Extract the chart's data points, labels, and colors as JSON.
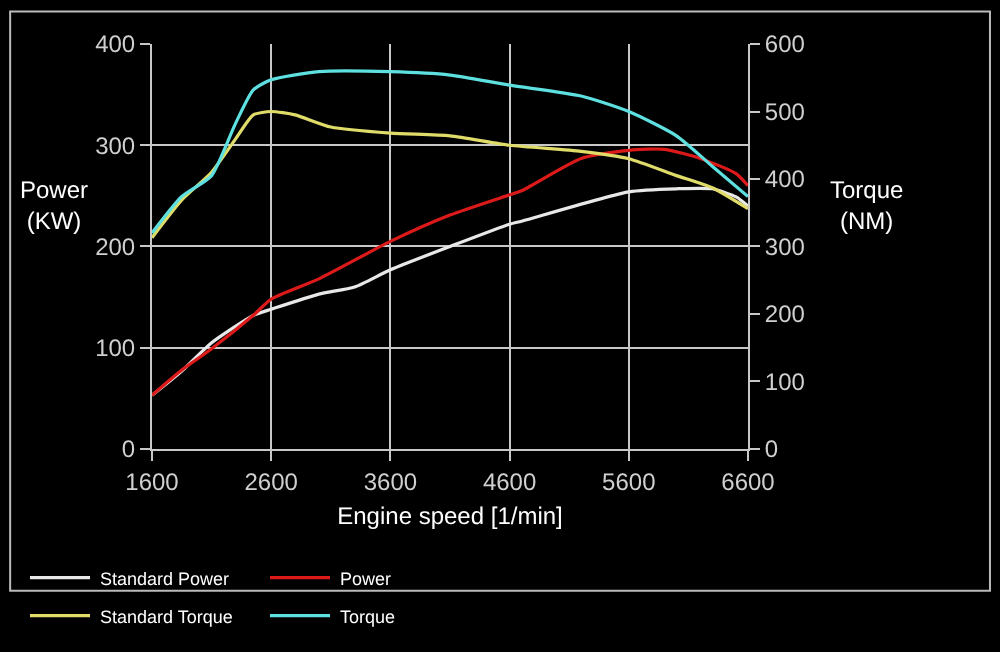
{
  "chart_data": {
    "type": "line",
    "xlabel": "Engine speed [1/min]",
    "ylabel": "Power\n(KW)",
    "y2label": "Torque\n(NM)",
    "xlim": [
      1600,
      6600
    ],
    "xticks": [
      1600,
      2600,
      3600,
      4600,
      5600,
      6600
    ],
    "ylim": [
      0,
      400
    ],
    "yticks": [
      0,
      100,
      200,
      300,
      400
    ],
    "y2lim": [
      0,
      600
    ],
    "y2ticks": [
      0,
      100,
      200,
      300,
      400,
      500,
      600
    ],
    "grid": true,
    "legend": "bottom",
    "marker": "none",
    "line_style": "solid",
    "series": [
      {
        "name": "Standard Power",
        "color": "#e8e8e8",
        "x": [
          1600,
          1850,
          2100,
          2450,
          2600,
          3000,
          3300,
          3600,
          4100,
          4600,
          4700,
          5600,
          6000,
          6300,
          6500,
          6600
        ],
        "values": [
          53,
          77,
          105,
          132,
          138,
          153,
          160,
          177,
          200,
          222,
          225,
          254,
          257,
          257,
          249,
          240
        ]
      },
      {
        "name": "Power",
        "color": "#dd1a1a",
        "x": [
          1600,
          1850,
          2100,
          2450,
          2600,
          3000,
          3600,
          4100,
          4600,
          4700,
          5200,
          5600,
          5900,
          6200,
          6500,
          6600
        ],
        "values": [
          53,
          78,
          99,
          132,
          148,
          168,
          205,
          231,
          251,
          255,
          287,
          295,
          296,
          287,
          272,
          260
        ]
      },
      {
        "name": "Standard Torque",
        "color": "#e0dc6a",
        "axis": "y2",
        "x": [
          1600,
          1850,
          2100,
          2300,
          2450,
          2600,
          2800,
          3100,
          3600,
          4100,
          4600,
          5200,
          5600,
          6000,
          6300,
          6600
        ],
        "values": [
          313,
          369,
          410,
          459,
          495,
          500,
          495,
          477,
          468,
          464,
          450,
          441,
          430,
          405,
          387,
          356
        ]
      },
      {
        "name": "Torque",
        "color": "#5ee0e0",
        "axis": "y2",
        "x": [
          1600,
          1850,
          2100,
          2300,
          2450,
          2600,
          3000,
          3600,
          4100,
          4600,
          5200,
          5600,
          6000,
          6300,
          6600
        ],
        "values": [
          320,
          374,
          405,
          482,
          532,
          547,
          559,
          559,
          554,
          539,
          523,
          500,
          464,
          419,
          374
        ]
      }
    ]
  }
}
